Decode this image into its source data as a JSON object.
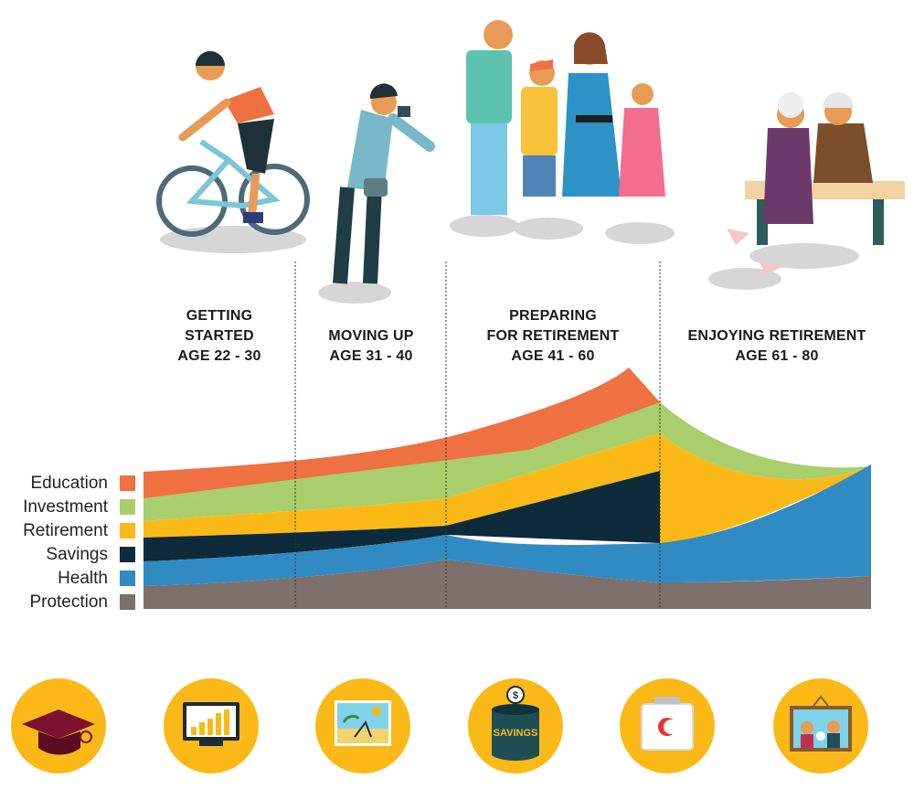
{
  "stages": [
    {
      "id": "getting-started",
      "lines": [
        "GETTING",
        "STARTED",
        "AGE 22 - 30"
      ]
    },
    {
      "id": "moving-up",
      "lines": [
        "MOVING UP",
        "AGE 31 - 40"
      ]
    },
    {
      "id": "preparing",
      "lines": [
        "PREPARING",
        "FOR RETIREMENT",
        "AGE 41 - 60"
      ]
    },
    {
      "id": "enjoying",
      "lines": [
        "ENJOYING RETIREMENT",
        "AGE 61 - 80"
      ]
    }
  ],
  "legend": [
    {
      "label": "Education",
      "color": "#ef7142"
    },
    {
      "label": "Investment",
      "color": "#a8cf6b"
    },
    {
      "label": "Retirement",
      "color": "#fbb917"
    },
    {
      "label": "Savings",
      "color": "#0d2b3a"
    },
    {
      "label": "Health",
      "color": "#318bc3"
    },
    {
      "label": "Protection",
      "color": "#7d706d"
    }
  ],
  "icons": [
    {
      "name": "graduation-cap-icon"
    },
    {
      "name": "investment-monitor-icon"
    },
    {
      "name": "retirement-beach-icon"
    },
    {
      "name": "savings-jar-icon",
      "label": "SAVINGS",
      "symbol": "$"
    },
    {
      "name": "health-kit-icon"
    },
    {
      "name": "protection-family-icon"
    }
  ],
  "icon_color": "#fbb917"
}
